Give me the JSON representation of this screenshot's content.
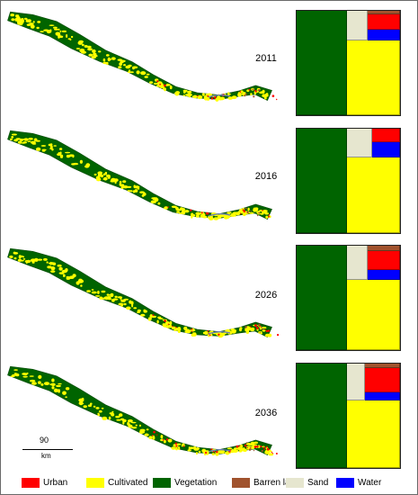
{
  "panels": [
    {
      "year": "2011",
      "shares": {
        "vegetation": 0.49,
        "cultivated": 0.445,
        "sand": 0.025,
        "urban": 0.02,
        "water": 0.015,
        "barren": 0.005
      }
    },
    {
      "year": "2016",
      "shares": {
        "vegetation": 0.49,
        "cultivated": 0.45,
        "sand": 0.028,
        "urban": 0.015,
        "water": 0.017,
        "barren": 0.0
      }
    },
    {
      "year": "2026",
      "shares": {
        "vegetation": 0.49,
        "cultivated": 0.42,
        "sand": 0.035,
        "urban": 0.03,
        "water": 0.017,
        "barren": 0.008
      }
    },
    {
      "year": "2036",
      "shares": {
        "vegetation": 0.49,
        "cultivated": 0.41,
        "sand": 0.034,
        "urban": 0.043,
        "water": 0.015,
        "barren": 0.008
      }
    }
  ],
  "scale_bar": {
    "value": "90",
    "unit": "km"
  },
  "legend": [
    {
      "key": "urban",
      "label": "Urban",
      "color": "#ff0000"
    },
    {
      "key": "cultivated",
      "label": "Cultivated",
      "color": "#ffff00"
    },
    {
      "key": "vegetation",
      "label": "Vegetation",
      "color": "#006400"
    },
    {
      "key": "barren",
      "label": "Barren land",
      "color": "#a0522d"
    },
    {
      "key": "sand",
      "label": "Sand",
      "color": "#e6e6cf"
    },
    {
      "key": "water",
      "label": "Water",
      "color": "#0000ff"
    }
  ]
}
